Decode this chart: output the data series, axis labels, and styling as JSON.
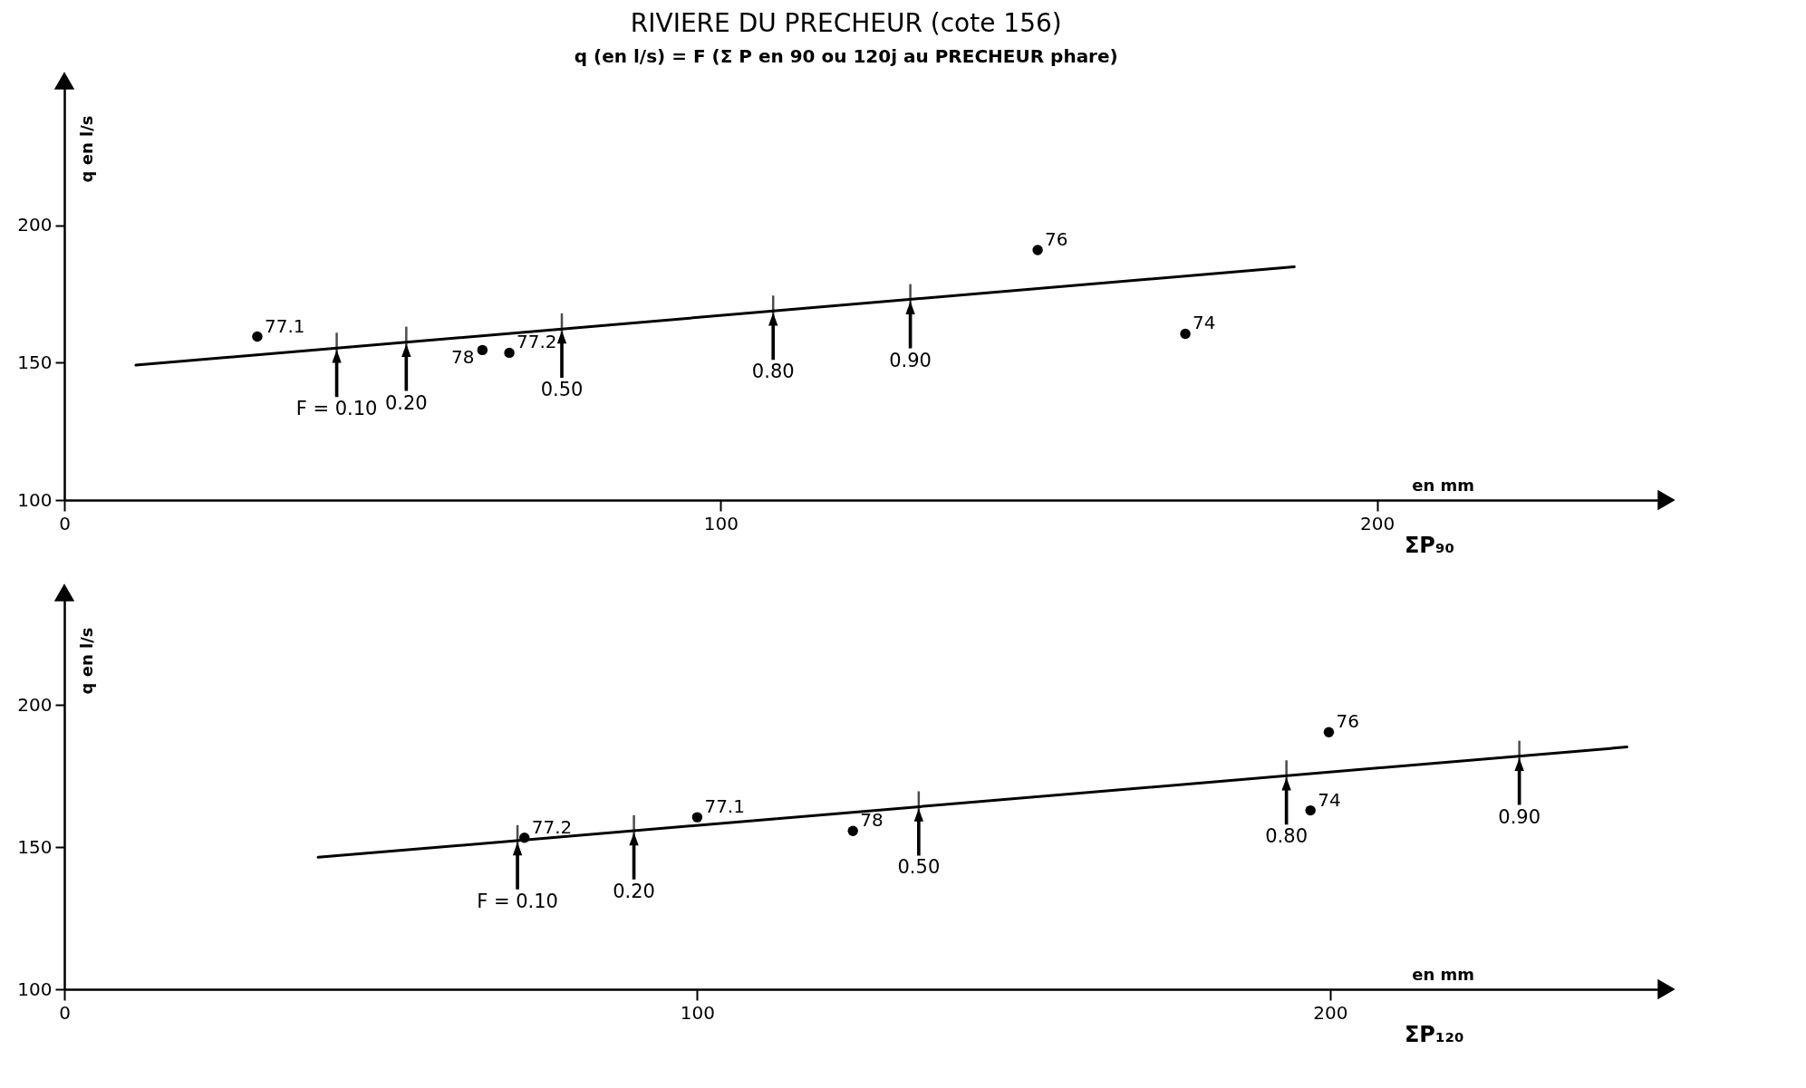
{
  "chart_data": [
    {
      "type": "scatter",
      "title": "RIVIERE DU PRECHEUR (cote 156)",
      "subtitle": "q (en l/s) = F (Σ P en 90 ou 120j au PRECHEUR phare)",
      "xlabel": "ΣP₉₀",
      "ylabel": "q en l/s",
      "xlim": [
        0,
        243
      ],
      "xticks": [
        0,
        100,
        200
      ],
      "ylim": [
        100,
        250
      ],
      "yticks": [
        100,
        150,
        200
      ],
      "grid": false,
      "series": [
        {
          "type": "scatter",
          "marker": "circle",
          "color": "#000000",
          "x": [
            29.4,
            63.7,
            67.8,
            148.3,
            170.8
          ],
          "values": [
            159.5,
            154.6,
            153.6,
            191,
            160.5
          ]
        },
        {
          "type": "line",
          "marker": "none",
          "line_style": "solid",
          "color": "#000000",
          "x": [
            10.9,
            187.4
          ],
          "values": [
            149.1,
            184.9
          ]
        }
      ],
      "annotations": [
        {
          "text": "77.1",
          "x": 29.4,
          "y": 159.5
        },
        {
          "text": "78",
          "x": 63.7,
          "y": 154.6
        },
        {
          "text": "77.2",
          "x": 67.8,
          "y": 153.6
        },
        {
          "text": "76",
          "x": 148.3,
          "y": 191
        },
        {
          "text": "74",
          "x": 170.8,
          "y": 160.5
        },
        {
          "text": "F = 0.10",
          "x": 41.5,
          "y": 155.3
        },
        {
          "text": "0.20",
          "x": 52.1,
          "y": 157.5
        },
        {
          "text": "0.50",
          "x": 75.8,
          "y": 162.3
        },
        {
          "text": "0.80",
          "x": 108,
          "y": 168.8
        },
        {
          "text": "0.90",
          "x": 128.9,
          "y": 173.0
        },
        "en mm"
      ]
    },
    {
      "type": "scatter",
      "xlabel": "ΣP₁₂₀",
      "ylabel": "q en l/s",
      "xlim": [
        0,
        252
      ],
      "xticks": [
        0,
        100,
        200
      ],
      "ylim": [
        100,
        237
      ],
      "yticks": [
        100,
        150,
        200
      ],
      "grid": false,
      "series": [
        {
          "type": "scatter",
          "marker": "circle",
          "color": "#000000",
          "x": [
            72.7,
            100,
            124.6,
            199.8,
            196.9
          ],
          "values": [
            153.3,
            160.5,
            155.7,
            190.4,
            162.9
          ]
        },
        {
          "type": "line",
          "marker": "none",
          "line_style": "solid",
          "color": "#000000",
          "x": [
            40.1,
            246.9
          ],
          "values": [
            146.4,
            185.2
          ]
        }
      ],
      "annotations": [
        {
          "text": "77.2",
          "x": 72.7,
          "y": 153.3
        },
        {
          "text": "77.1",
          "x": 100,
          "y": 160.5
        },
        {
          "text": "78",
          "x": 124.6,
          "y": 155.7
        },
        {
          "text": "76",
          "x": 199.8,
          "y": 190.4
        },
        {
          "text": "74",
          "x": 196.9,
          "y": 162.9
        },
        {
          "text": "F = 0.10",
          "x": 71.6,
          "y": 152.3
        },
        {
          "text": "0.20",
          "x": 90,
          "y": 155.8
        },
        {
          "text": "0.50",
          "x": 135,
          "y": 164.2
        },
        {
          "text": "0.80",
          "x": 193.1,
          "y": 175.1
        },
        {
          "text": "0.90",
          "x": 229.9,
          "y": 182.0
        },
        "en mm"
      ]
    }
  ]
}
